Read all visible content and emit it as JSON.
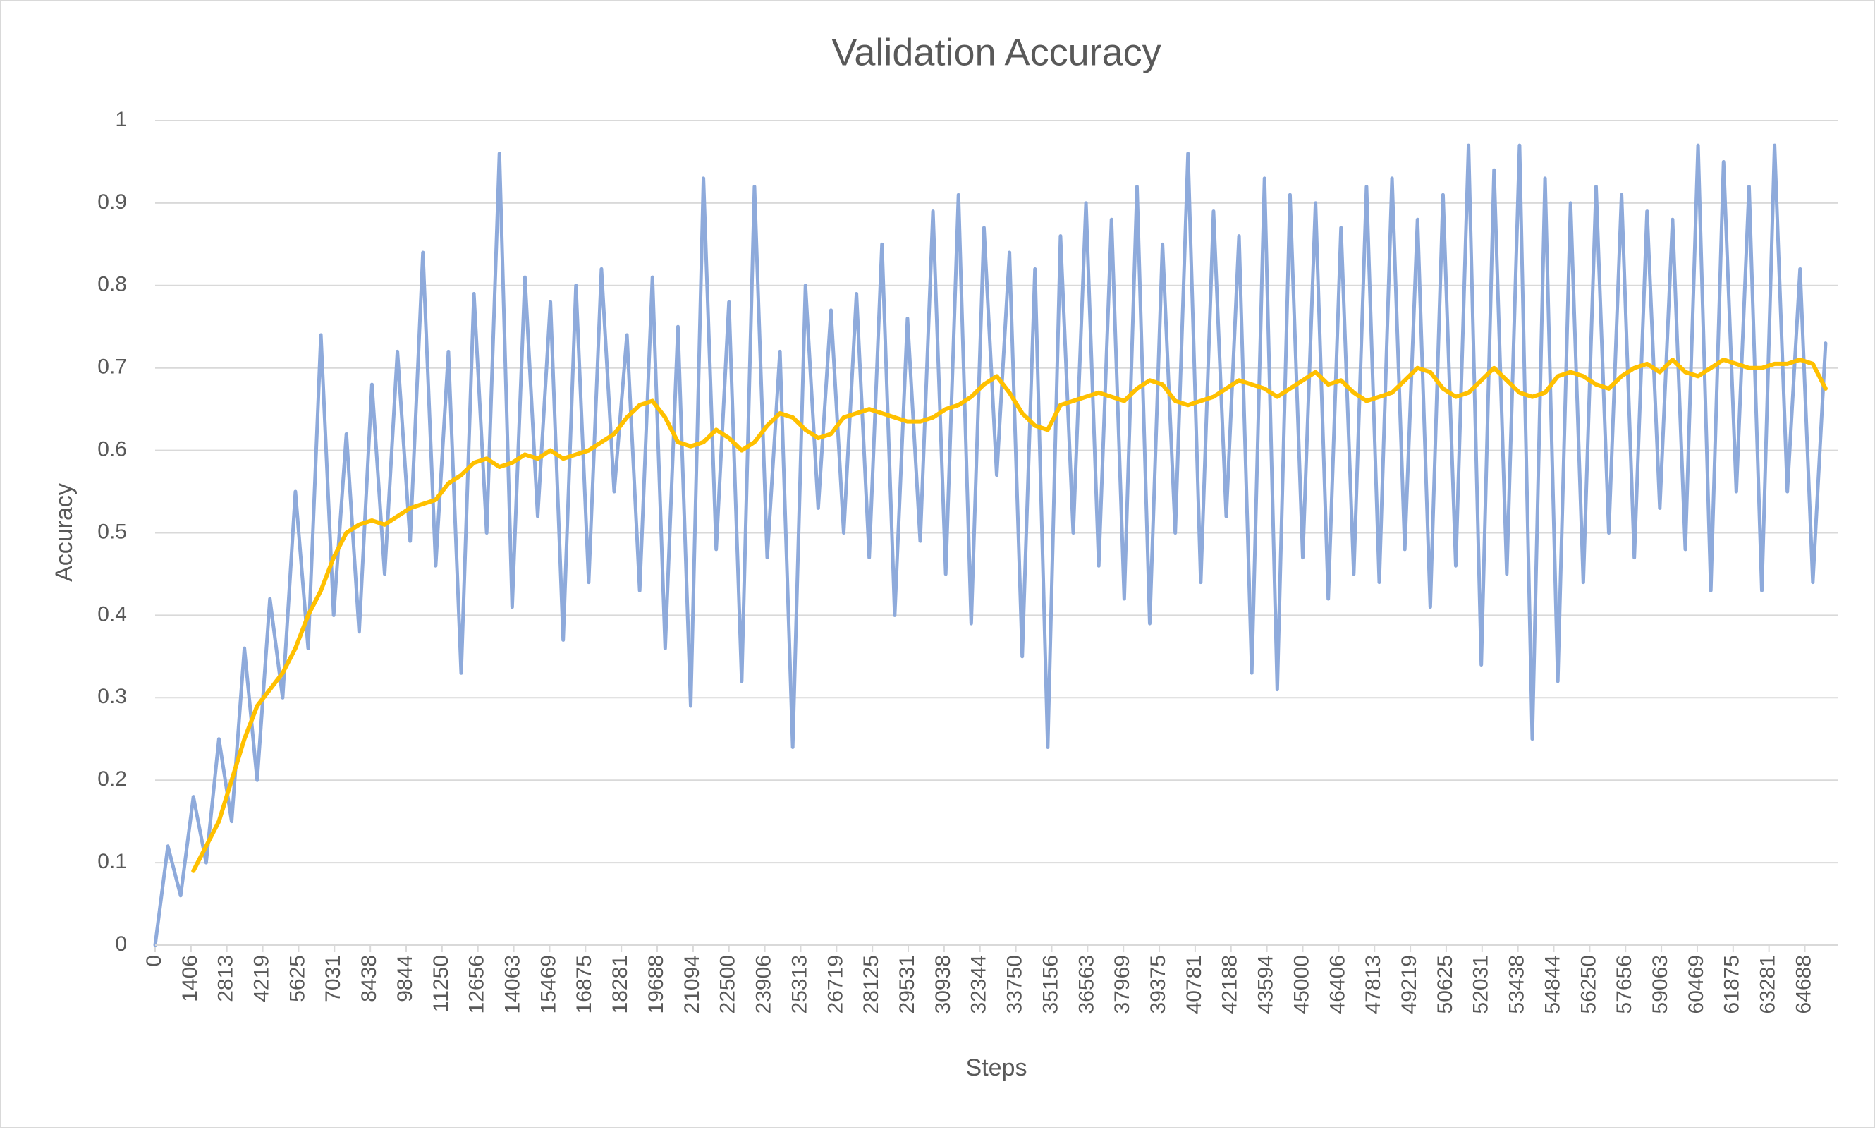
{
  "chart_data": {
    "type": "line",
    "title": "Validation Accuracy",
    "x_label": "Steps",
    "y_label": "Accuracy",
    "x": [
      0,
      500,
      1000,
      1500,
      2000,
      2500,
      3000,
      3500,
      4000,
      4500,
      5000,
      5500,
      6000,
      6500,
      7000,
      7500,
      8000,
      8500,
      9000,
      9500,
      10000,
      10500,
      11000,
      11500,
      12000,
      12500,
      13000,
      13500,
      14000,
      14500,
      15000,
      15500,
      16000,
      16500,
      17000,
      17500,
      18000,
      18500,
      19000,
      19500,
      20000,
      20500,
      21000,
      21500,
      22000,
      22500,
      23000,
      23500,
      24000,
      24500,
      25000,
      25500,
      26000,
      26500,
      27000,
      27500,
      28000,
      28500,
      29000,
      29500,
      30000,
      30500,
      31000,
      31500,
      32000,
      32500,
      33000,
      33500,
      34000,
      34500,
      35000,
      35500,
      36000,
      36500,
      37000,
      37500,
      38000,
      38500,
      39000,
      39500,
      40000,
      40500,
      41000,
      41500,
      42000,
      42500,
      43000,
      43500,
      44000,
      44500,
      45000,
      45500,
      46000,
      46500,
      47000,
      47500,
      48000,
      48500,
      49000,
      49500,
      50000,
      50500,
      51000,
      51500,
      52000,
      52500,
      53000,
      53500,
      54000,
      54500,
      55000,
      55500,
      56000,
      56500,
      57000,
      57500,
      58000,
      58500,
      59000,
      59500,
      60000,
      60500,
      61000,
      61500,
      62000,
      62500,
      63000,
      63500,
      64000,
      64500,
      65000,
      65500
    ],
    "series": [
      {
        "color": "#8eaadb",
        "values": [
          0,
          0.12,
          0.06,
          0.18,
          0.1,
          0.25,
          0.15,
          0.36,
          0.2,
          0.42,
          0.3,
          0.55,
          0.36,
          0.74,
          0.4,
          0.62,
          0.38,
          0.68,
          0.45,
          0.72,
          0.49,
          0.84,
          0.46,
          0.72,
          0.33,
          0.79,
          0.5,
          0.96,
          0.41,
          0.81,
          0.52,
          0.78,
          0.37,
          0.8,
          0.44,
          0.82,
          0.55,
          0.74,
          0.43,
          0.81,
          0.36,
          0.75,
          0.29,
          0.93,
          0.48,
          0.78,
          0.32,
          0.92,
          0.47,
          0.72,
          0.24,
          0.8,
          0.53,
          0.77,
          0.5,
          0.79,
          0.47,
          0.85,
          0.4,
          0.76,
          0.49,
          0.89,
          0.45,
          0.91,
          0.39,
          0.87,
          0.57,
          0.84,
          0.35,
          0.82,
          0.24,
          0.86,
          0.5,
          0.9,
          0.46,
          0.88,
          0.42,
          0.92,
          0.39,
          0.85,
          0.5,
          0.96,
          0.44,
          0.89,
          0.52,
          0.86,
          0.33,
          0.93,
          0.31,
          0.91,
          0.47,
          0.9,
          0.42,
          0.87,
          0.45,
          0.92,
          0.44,
          0.93,
          0.48,
          0.88,
          0.41,
          0.91,
          0.46,
          0.97,
          0.34,
          0.94,
          0.45,
          0.97,
          0.25,
          0.93,
          0.32,
          0.9,
          0.44,
          0.92,
          0.5,
          0.91,
          0.47,
          0.89,
          0.53,
          0.88,
          0.48,
          0.97,
          0.43,
          0.95,
          0.55,
          0.92,
          0.43,
          0.97,
          0.55,
          0.82,
          0.44,
          0.73
        ]
      },
      {
        "color": "#ffc000",
        "values": [
          null,
          null,
          null,
          0.09,
          0.12,
          0.15,
          0.2,
          0.25,
          0.29,
          0.31,
          0.33,
          0.36,
          0.4,
          0.43,
          0.47,
          0.5,
          0.51,
          0.515,
          0.51,
          0.52,
          0.53,
          0.535,
          0.54,
          0.56,
          0.57,
          0.585,
          0.59,
          0.58,
          0.585,
          0.595,
          0.59,
          0.6,
          0.59,
          0.595,
          0.6,
          0.61,
          0.62,
          0.64,
          0.655,
          0.66,
          0.64,
          0.61,
          0.605,
          0.61,
          0.625,
          0.615,
          0.6,
          0.61,
          0.63,
          0.645,
          0.64,
          0.625,
          0.615,
          0.62,
          0.64,
          0.645,
          0.65,
          0.645,
          0.64,
          0.635,
          0.635,
          0.64,
          0.65,
          0.655,
          0.665,
          0.68,
          0.69,
          0.67,
          0.645,
          0.63,
          0.625,
          0.655,
          0.66,
          0.665,
          0.67,
          0.665,
          0.66,
          0.675,
          0.685,
          0.68,
          0.66,
          0.655,
          0.66,
          0.665,
          0.675,
          0.685,
          0.68,
          0.675,
          0.665,
          0.675,
          0.685,
          0.695,
          0.68,
          0.685,
          0.67,
          0.66,
          0.665,
          0.67,
          0.685,
          0.7,
          0.695,
          0.675,
          0.665,
          0.67,
          0.685,
          0.7,
          0.685,
          0.67,
          0.665,
          0.67,
          0.69,
          0.695,
          0.69,
          0.68,
          0.675,
          0.69,
          0.7,
          0.705,
          0.695,
          0.71,
          0.695,
          0.69,
          0.7,
          0.71,
          0.705,
          0.7,
          0.7,
          0.705,
          0.705,
          0.71,
          0.705,
          0.675
        ]
      }
    ],
    "xlim": [
      0,
      66000
    ],
    "xticks": [
      0,
      {
        "value": 1406.25,
        "label": "1406"
      },
      {
        "value": 2812.5,
        "label": "2813"
      },
      {
        "value": 4218.75,
        "label": "4219"
      },
      5625,
      {
        "value": 7031.25,
        "label": "7031"
      },
      {
        "value": 8437.5,
        "label": "8438"
      },
      {
        "value": 9843.75,
        "label": "9844"
      },
      11250,
      {
        "value": 12656.25,
        "label": "12656"
      },
      {
        "value": 14062.5,
        "label": "14063"
      },
      {
        "value": 15468.75,
        "label": "15469"
      },
      16875,
      {
        "value": 18281.25,
        "label": "18281"
      },
      {
        "value": 19687.5,
        "label": "19688"
      },
      {
        "value": 21093.75,
        "label": "21094"
      },
      22500,
      {
        "value": 23906.25,
        "label": "23906"
      },
      {
        "value": 25312.5,
        "label": "25313"
      },
      {
        "value": 26718.75,
        "label": "26719"
      },
      28125,
      {
        "value": 29531.25,
        "label": "29531"
      },
      {
        "value": 30937.5,
        "label": "30938"
      },
      {
        "value": 32343.75,
        "label": "32344"
      },
      33750,
      {
        "value": 35156.25,
        "label": "35156"
      },
      {
        "value": 36562.5,
        "label": "36563"
      },
      {
        "value": 37968.75,
        "label": "37969"
      },
      39375,
      {
        "value": 40781.25,
        "label": "40781"
      },
      {
        "value": 42187.5,
        "label": "42188"
      },
      {
        "value": 43593.75,
        "label": "43594"
      },
      45000,
      {
        "value": 46406.25,
        "label": "46406"
      },
      {
        "value": 47812.5,
        "label": "47813"
      },
      {
        "value": 49218.75,
        "label": "49219"
      },
      50625,
      {
        "value": 52031.25,
        "label": "52031"
      },
      {
        "value": 53437.5,
        "label": "53438"
      },
      {
        "value": 54843.75,
        "label": "54844"
      },
      56250,
      {
        "value": 57656.25,
        "label": "57656"
      },
      {
        "value": 59062.5,
        "label": "59063"
      },
      {
        "value": 60468.75,
        "label": "60469"
      },
      61875,
      {
        "value": 63281.25,
        "label": "63281"
      },
      {
        "value": 64687.5,
        "label": "64688"
      }
    ],
    "ylim": [
      0,
      1
    ],
    "yticks": [
      0,
      0.1,
      0.2,
      0.3,
      0.4,
      0.5,
      0.6,
      0.7,
      0.8,
      0.9,
      1
    ],
    "grid": true
  }
}
